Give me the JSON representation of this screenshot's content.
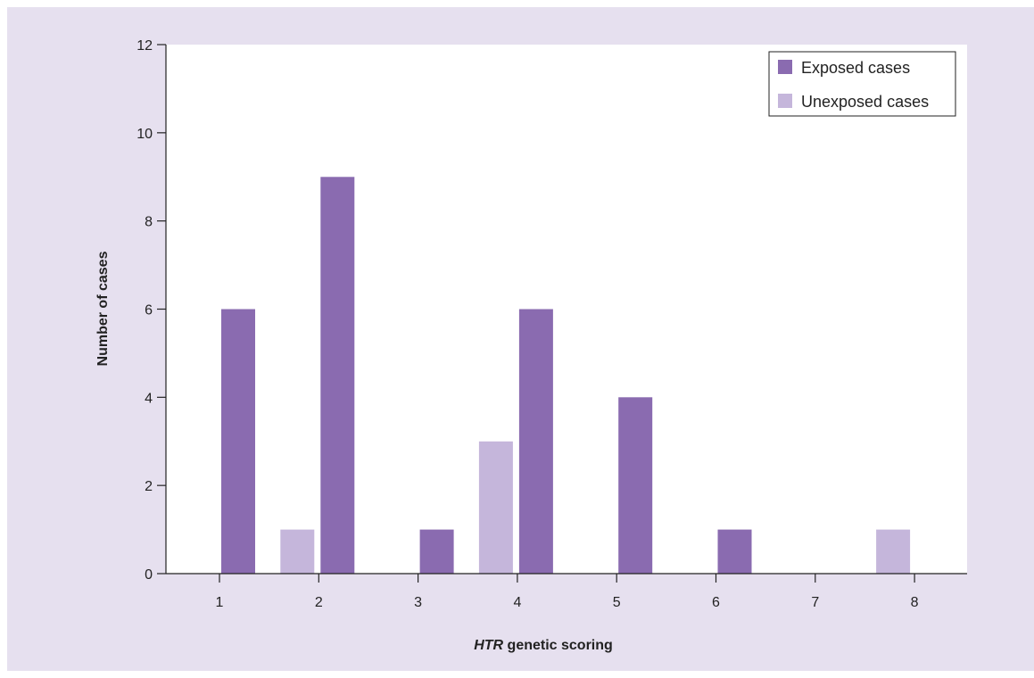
{
  "chart_data": {
    "type": "bar",
    "categories": [
      "1",
      "2",
      "3",
      "4",
      "5",
      "6",
      "7",
      "8"
    ],
    "series": [
      {
        "name": "Exposed cases",
        "color": "#8a6bb0",
        "values": [
          6,
          9,
          1,
          6,
          4,
          1,
          0,
          0
        ]
      },
      {
        "name": "Unexposed cases",
        "color": "#c5b6db",
        "values": [
          0,
          1,
          0,
          3,
          0,
          0,
          0,
          1
        ]
      }
    ],
    "xlabel_italic": "HTR",
    "xlabel_rest": " genetic scoring",
    "ylabel": "Number of cases",
    "ylim": [
      0,
      12
    ],
    "yticks": [
      "0",
      "2",
      "4",
      "6",
      "8",
      "10",
      "12"
    ],
    "grid": false,
    "legend_position": "top-right",
    "background_color": "#e6e0ef",
    "plot_background": "#ffffff"
  }
}
